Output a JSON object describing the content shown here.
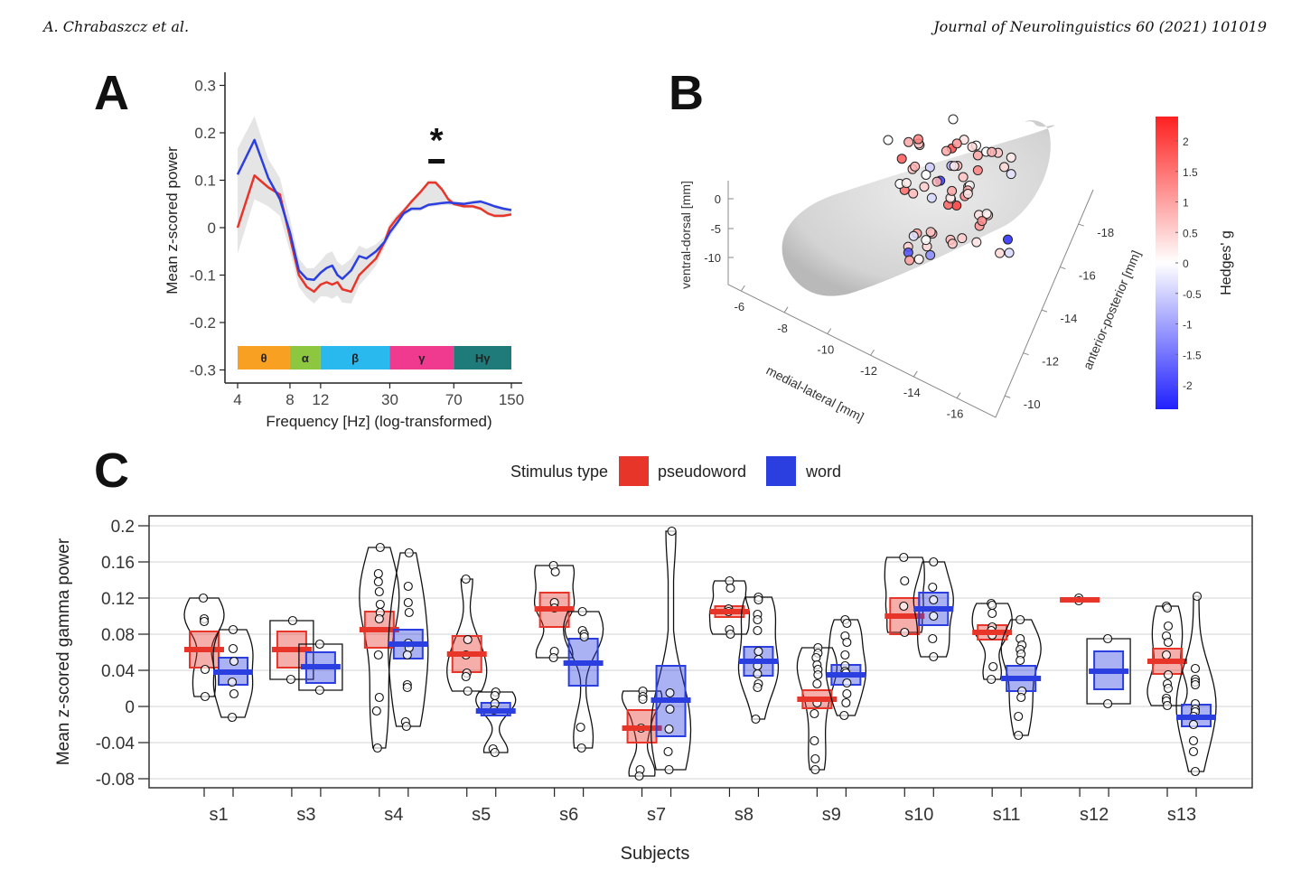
{
  "header": {
    "left": "A. Chrabaszcz et al.",
    "right": "Journal of Neurolinguistics 60 (2021) 101019"
  },
  "panel_labels": {
    "a": "A",
    "b": "B",
    "c": "C"
  },
  "colors": {
    "pseudoword": "#e8352a",
    "word": "#2b3ee0",
    "ci_band": "#d9d9d9",
    "colorbar_pos": "#ff2020",
    "colorbar_neg": "#2020ff"
  },
  "chart_data": [
    {
      "id": "A",
      "type": "line",
      "title": "",
      "xlabel": "Frequency [Hz] (log-transformed)",
      "ylabel": "Mean z-scored power",
      "xscale": "log",
      "xlim": [
        4,
        150
      ],
      "ylim": [
        -0.32,
        0.32
      ],
      "x_ticks": [
        4,
        8,
        12,
        30,
        70,
        150
      ],
      "y_ticks": [
        0.3,
        0.2,
        0.1,
        0,
        -0.1,
        -0.2,
        -0.3
      ],
      "y_tick_labels": [
        "0.3",
        "0.2",
        "0.1",
        "0",
        "-0.1",
        "-0.2",
        "-0.3"
      ],
      "annotation": {
        "text": "*",
        "x_range": [
          50,
          62
        ],
        "note": "significance bar"
      },
      "bands": [
        {
          "label": "θ",
          "from": 4,
          "to": 8,
          "color": "#f7a021"
        },
        {
          "label": "α",
          "from": 8,
          "to": 12,
          "color": "#8dc63f"
        },
        {
          "label": "β",
          "from": 12,
          "to": 30,
          "color": "#29b9ef"
        },
        {
          "label": "γ",
          "from": 30,
          "to": 70,
          "color": "#ef3a8f"
        },
        {
          "label": "Hγ",
          "from": 70,
          "to": 150,
          "color": "#1f7b7a"
        }
      ],
      "series": [
        {
          "name": "pseudoword",
          "color": "#e8352a",
          "x": [
            4,
            5,
            6,
            7,
            8,
            9,
            10,
            11,
            12,
            13,
            14,
            15,
            16,
            18,
            20,
            22,
            25,
            28,
            30,
            33,
            36,
            40,
            45,
            50,
            55,
            60,
            65,
            70,
            80,
            90,
            100,
            110,
            120,
            135,
            150
          ],
          "y": [
            0.0,
            0.11,
            0.085,
            0.07,
            -0.02,
            -0.1,
            -0.125,
            -0.135,
            -0.12,
            -0.115,
            -0.12,
            -0.115,
            -0.13,
            -0.135,
            -0.1,
            -0.085,
            -0.065,
            -0.03,
            0.0,
            0.02,
            0.035,
            0.055,
            0.075,
            0.095,
            0.095,
            0.08,
            0.06,
            0.05,
            0.045,
            0.045,
            0.04,
            0.03,
            0.025,
            0.025,
            0.028
          ]
        },
        {
          "name": "word",
          "color": "#2b3ee0",
          "x": [
            4,
            5,
            6,
            7,
            8,
            9,
            10,
            11,
            12,
            13,
            14,
            15,
            16,
            18,
            20,
            22,
            25,
            28,
            30,
            33,
            36,
            40,
            45,
            50,
            55,
            60,
            65,
            70,
            80,
            90,
            100,
            110,
            120,
            135,
            150
          ],
          "y": [
            0.112,
            0.185,
            0.105,
            0.06,
            -0.01,
            -0.09,
            -0.108,
            -0.11,
            -0.095,
            -0.085,
            -0.08,
            -0.1,
            -0.108,
            -0.09,
            -0.06,
            -0.065,
            -0.05,
            -0.03,
            -0.01,
            0.01,
            0.03,
            0.04,
            0.04,
            0.048,
            0.05,
            0.052,
            0.053,
            0.052,
            0.05,
            0.053,
            0.055,
            0.05,
            0.045,
            0.04,
            0.037
          ]
        }
      ],
      "ci_halfwidth": [
        0.055,
        0.05,
        0.04,
        0.035,
        0.03,
        0.025,
        0.022,
        0.025,
        0.025,
        0.03,
        0.03,
        0.028,
        0.028,
        0.025,
        0.022,
        0.02,
        0.015,
        0.012,
        0.01,
        0.008,
        0.006,
        0.005,
        0.005,
        0.005,
        0.005,
        0.005,
        0.005,
        0.004,
        0.004,
        0.004,
        0.004,
        0.004,
        0.004,
        0.004,
        0.004
      ]
    },
    {
      "id": "B",
      "type": "scatter",
      "title": "",
      "axes": {
        "x": {
          "label": "medial-lateral [mm]",
          "ticks": [
            "-6",
            "-8",
            "-10",
            "-12",
            "-14",
            "-16"
          ]
        },
        "y": {
          "label": "anterior-posterior [mm]",
          "ticks": [
            "-10",
            "-12",
            "-14",
            "-16",
            "-18"
          ]
        },
        "z": {
          "label": "ventral-dorsal [mm]",
          "ticks": [
            "0",
            "-5",
            "-10"
          ]
        }
      },
      "colorbar": {
        "label": "Hedges' g",
        "range": [
          -2.4,
          2.4
        ],
        "ticks": [
          2,
          1.5,
          1,
          0.5,
          0,
          -0.5,
          -1,
          -1.5,
          -2
        ],
        "tick_labels": [
          "2",
          "1.5",
          "1",
          "0.5",
          "0",
          "-0.5",
          "-1",
          "-1.5",
          "-2"
        ]
      },
      "points_g": [
        0.0,
        0.0,
        2.0,
        0.6,
        0.1,
        0.5,
        0.6,
        1.0,
        0.0,
        0.8,
        0.9,
        1.2,
        0.3,
        -0.4,
        0.7,
        0.2,
        1.6,
        1.3,
        0.1,
        -0.8,
        0.6,
        1.0,
        -2.0,
        -1.8,
        0.4,
        0.2,
        0.0,
        0.5,
        0.8,
        1.9,
        1.5,
        0.3,
        -0.3,
        0.2,
        0.7,
        0.9,
        -0.5,
        0.0,
        0.6,
        0.4,
        -2.2,
        0.1,
        0.3,
        0.8,
        0.5,
        1.1,
        -1.2,
        0.0,
        0.9,
        1.0,
        0.6,
        0.2,
        -0.3,
        0.4,
        1.7,
        1.2,
        0.3,
        0.0,
        0.7,
        0.9,
        0.5,
        0.6,
        1.1,
        -0.4,
        0.2,
        0.0,
        0.8,
        1.3,
        0.4,
        0.9
      ]
    },
    {
      "id": "C",
      "type": "violin",
      "title": "",
      "legend": {
        "title": "Stimulus type",
        "entries": [
          "pseudoword",
          "word"
        ],
        "position": "top-center"
      },
      "xlabel": "Subjects",
      "ylabel": "Mean z-scored gamma power",
      "ylim": [
        -0.09,
        0.21
      ],
      "y_ticks": [
        0.2,
        0.16,
        0.12,
        0.08,
        0.04,
        0,
        -0.04,
        -0.08
      ],
      "y_tick_labels": [
        "0.2",
        "0.16",
        "0.12",
        "0.08",
        "0.04",
        "0",
        "-0.04",
        "-0.08"
      ],
      "grid": true,
      "categories": [
        "s1",
        "s3",
        "s4",
        "s5",
        "s6",
        "s7",
        "s8",
        "s9",
        "s10",
        "s11",
        "s12",
        "s13"
      ],
      "series": [
        {
          "name": "pseudoword",
          "color": "#e8352a",
          "mean": [
            0.063,
            0.063,
            0.085,
            0.058,
            0.108,
            -0.024,
            0.105,
            0.008,
            0.1,
            0.082,
            0.118,
            0.05
          ],
          "ci_low": [
            0.043,
            0.043,
            0.065,
            0.038,
            0.088,
            -0.04,
            0.099,
            -0.002,
            0.08,
            0.074,
            0.116,
            0.036
          ],
          "ci_high": [
            0.083,
            0.083,
            0.105,
            0.078,
            0.126,
            -0.004,
            0.111,
            0.018,
            0.12,
            0.09,
            0.12,
            0.064
          ],
          "points": [
            [
              0.12,
              0.097,
              0.094,
              0.041,
              0.011
            ],
            [
              0.095,
              0.03
            ],
            [
              0.176,
              0.147,
              0.138,
              0.127,
              0.113,
              0.104,
              0.097,
              0.057,
              0.01,
              -0.005,
              -0.046
            ],
            [
              0.141,
              0.074,
              0.057,
              0.037,
              0.033,
              0.017
            ],
            [
              0.156,
              0.149,
              0.115,
              0.109,
              0.061,
              0.054
            ],
            [
              0.017,
              0.011,
              0.008,
              -0.024,
              -0.07,
              -0.077
            ],
            [
              0.139,
              0.131,
              0.108,
              0.105,
              0.085,
              0.08
            ],
            [
              0.065,
              0.059,
              0.054,
              0.046,
              0.041,
              0.035,
              0.025,
              0.004,
              -0.008,
              -0.038,
              -0.058,
              -0.07
            ],
            [
              0.165,
              0.139,
              0.111,
              0.082
            ],
            [
              0.114,
              0.112,
              0.103,
              0.088,
              0.084,
              0.079,
              0.044,
              0.03
            ],
            [
              0.12,
              0.117
            ],
            [
              0.111,
              0.109,
              0.089,
              0.078,
              0.071,
              0.057,
              0.035,
              0.025,
              0.02,
              0.009,
              0.006,
              0.001
            ]
          ]
        },
        {
          "name": "word",
          "color": "#2b3ee0",
          "mean": [
            0.038,
            0.044,
            0.069,
            -0.005,
            0.048,
            0.007,
            0.05,
            0.035,
            0.108,
            0.031,
            0.039,
            -0.012
          ],
          "ci_low": [
            0.024,
            0.026,
            0.053,
            -0.01,
            0.023,
            -0.033,
            0.034,
            0.024,
            0.09,
            0.017,
            0.019,
            -0.022
          ],
          "ci_high": [
            0.054,
            0.06,
            0.085,
            0.004,
            0.075,
            0.045,
            0.066,
            0.046,
            0.126,
            0.045,
            0.061,
            0.002
          ],
          "points": [
            [
              0.085,
              0.064,
              0.05,
              0.027,
              0.014,
              -0.012
            ],
            [
              0.069,
              0.018
            ],
            [
              0.17,
              0.133,
              0.115,
              0.104,
              0.07,
              0.065,
              0.057,
              0.024,
              0.021,
              -0.017,
              -0.022
            ],
            [
              0.016,
              0.012,
              0.003,
              -0.004,
              -0.047,
              -0.051
            ],
            [
              0.105,
              0.084,
              0.08,
              0.077,
              -0.023,
              -0.046
            ],
            [
              0.194,
              0.015,
              -0.003,
              -0.025,
              -0.05,
              -0.07
            ],
            [
              0.121,
              0.118,
              0.102,
              0.096,
              0.084,
              0.061,
              0.052,
              0.045,
              0.036,
              0.025,
              0.021,
              -0.014
            ],
            [
              0.096,
              0.092,
              0.078,
              0.071,
              0.057,
              0.045,
              0.039,
              0.037,
              0.026,
              0.014,
              0.004,
              -0.01
            ],
            [
              0.16,
              0.132,
              0.118,
              0.1,
              0.075,
              0.055
            ],
            [
              0.096,
              0.075,
              0.068,
              0.063,
              0.058,
              0.051,
              0.017,
              0.01,
              -0.011,
              -0.032
            ],
            [
              0.075,
              0.003
            ],
            [
              0.122,
              0.042,
              0.03,
              0.027,
              0.024,
              0.003,
              -0.003,
              -0.006,
              -0.011,
              -0.02,
              -0.038,
              -0.05,
              -0.072
            ]
          ]
        }
      ]
    }
  ]
}
